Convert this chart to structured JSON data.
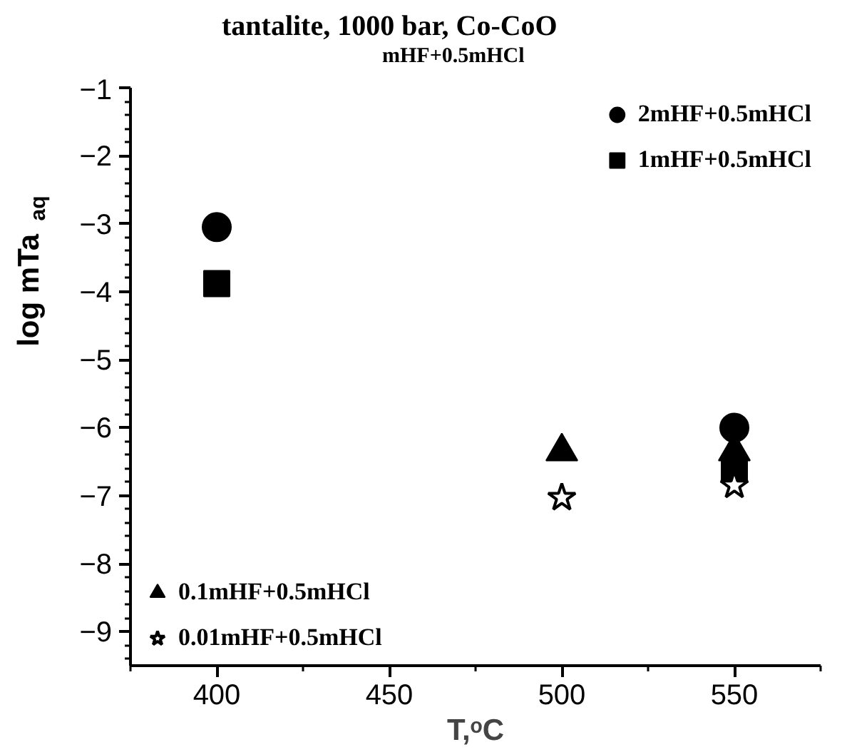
{
  "chart_data": {
    "type": "scatter",
    "title": "tantalite, 1000 bar, Co-CoO",
    "subtitle": "mHF+0.5mHCl",
    "xlabel": "T,ᵒC",
    "ylabel": "log mTa$_{aq}$",
    "xlim": [
      375,
      575
    ],
    "xticks": [
      400,
      450,
      500,
      550
    ],
    "ylim": [
      -9.5,
      -1
    ],
    "yticks": [
      -1,
      -2,
      -3,
      -4,
      -5,
      -6,
      -7,
      -8,
      -9
    ],
    "grid": false,
    "legend": "top right",
    "series": [
      {
        "name": "2mHF+0.5mHCl",
        "color": "#000000",
        "marker": "circle",
        "x": [
          400,
          550
        ],
        "values": [
          -3.05,
          -6.0
        ]
      },
      {
        "name": "1mHF+0.5mHCl",
        "color": "#000000",
        "marker": "square",
        "x": [
          400,
          550
        ],
        "values": [
          -3.88,
          -6.6
        ]
      },
      {
        "name": "0.1mHF+0.5mHCl",
        "color": "#000000",
        "marker": "triangle",
        "x": [
          500,
          550
        ],
        "values": [
          -6.35,
          -6.35
        ]
      },
      {
        "name": "0.01mHF+0.5mHCl",
        "color": "#000000",
        "marker": "star",
        "x": [
          500,
          550
        ],
        "values": [
          -7.03,
          -6.85
        ]
      }
    ]
  }
}
